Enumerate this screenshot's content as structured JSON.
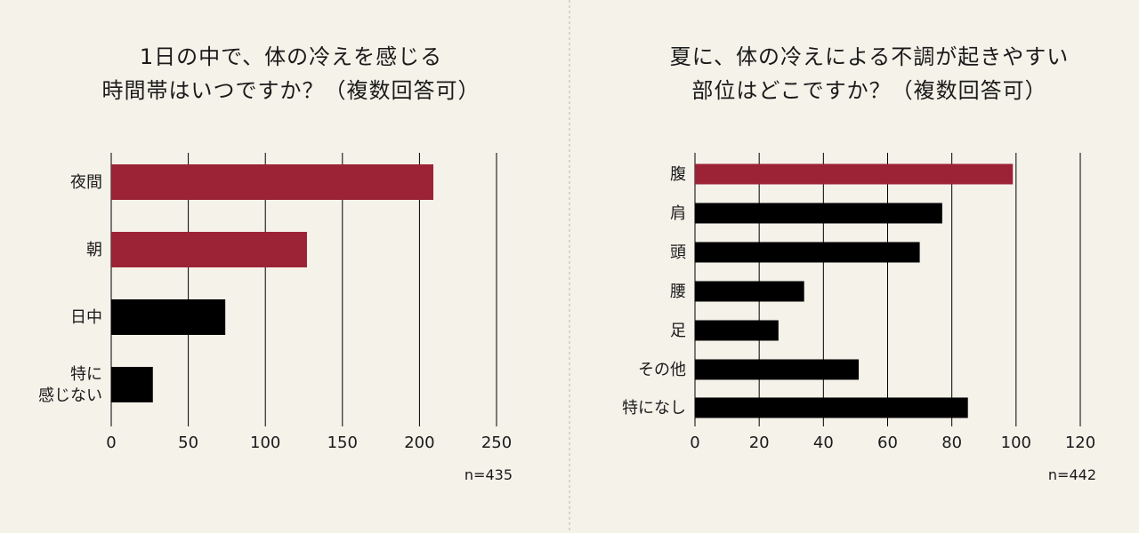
{
  "colors": {
    "background": "#f5f2ea",
    "highlight": "#9b2335",
    "bar": "#000000",
    "grid": "#000000",
    "divider": "#cfcac0"
  },
  "chart_data": [
    {
      "type": "bar",
      "orientation": "horizontal",
      "title_lines": [
        "1日の中で、体の冷えを感じる",
        "時間帯はいつですか？（複数回答可）"
      ],
      "categories": [
        [
          "夜間"
        ],
        [
          "朝"
        ],
        [
          "日中"
        ],
        [
          "特に",
          "感じない"
        ]
      ],
      "values": [
        209,
        127,
        74,
        27
      ],
      "highlight": [
        true,
        true,
        false,
        false
      ],
      "xlim": [
        0,
        250
      ],
      "xticks": [
        "0",
        "50",
        "100",
        "150",
        "200",
        "250"
      ],
      "grid": true,
      "note": "n=435"
    },
    {
      "type": "bar",
      "orientation": "horizontal",
      "title_lines": [
        "夏に、体の冷えによる不調が起きやすい",
        "部位はどこですか？（複数回答可）"
      ],
      "categories": [
        [
          "腹"
        ],
        [
          "肩"
        ],
        [
          "頭"
        ],
        [
          "腰"
        ],
        [
          "足"
        ],
        [
          "その他"
        ],
        [
          "特になし"
        ]
      ],
      "values": [
        99,
        77,
        70,
        34,
        26,
        51,
        85
      ],
      "highlight": [
        true,
        false,
        false,
        false,
        false,
        false,
        false
      ],
      "xlim": [
        0,
        120
      ],
      "xticks": [
        "0",
        "20",
        "40",
        "60",
        "80",
        "100",
        "120"
      ],
      "grid": true,
      "note": "n=442"
    }
  ]
}
